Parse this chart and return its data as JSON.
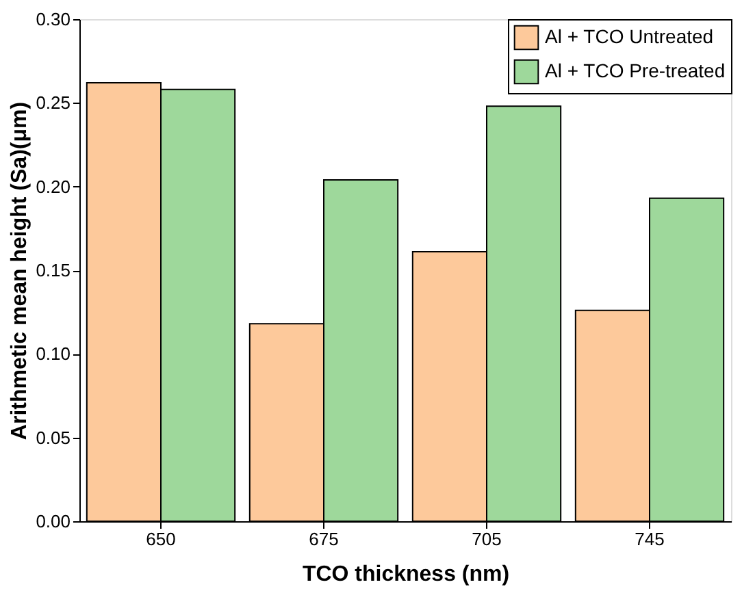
{
  "chart_data": {
    "type": "bar",
    "xlabel": "TCO thickness (nm)",
    "ylabel": "Arithmetic mean height (Sa)(μm)",
    "categories": [
      "650",
      "675",
      "705",
      "745"
    ],
    "series": [
      {
        "name": "Al + TCO Untreated",
        "color": "#fdc99b",
        "values": [
          0.262,
          0.118,
          0.161,
          0.126
        ]
      },
      {
        "name": "Al + TCO Pre-treated",
        "color": "#9ed89b",
        "values": [
          0.258,
          0.204,
          0.248,
          0.193
        ]
      }
    ],
    "ylim": [
      0,
      0.3
    ],
    "yticks": [
      {
        "value": 0,
        "label": "0.00"
      },
      {
        "value": 0.05,
        "label": "0.05"
      },
      {
        "value": 0.1,
        "label": "0.10"
      },
      {
        "value": 0.15,
        "label": "0.15"
      },
      {
        "value": 0.2,
        "label": "0.20"
      },
      {
        "value": 0.25,
        "label": "0.25"
      },
      {
        "value": 0.3,
        "label": "0.30"
      }
    ],
    "grid": false,
    "legend": "top right"
  }
}
